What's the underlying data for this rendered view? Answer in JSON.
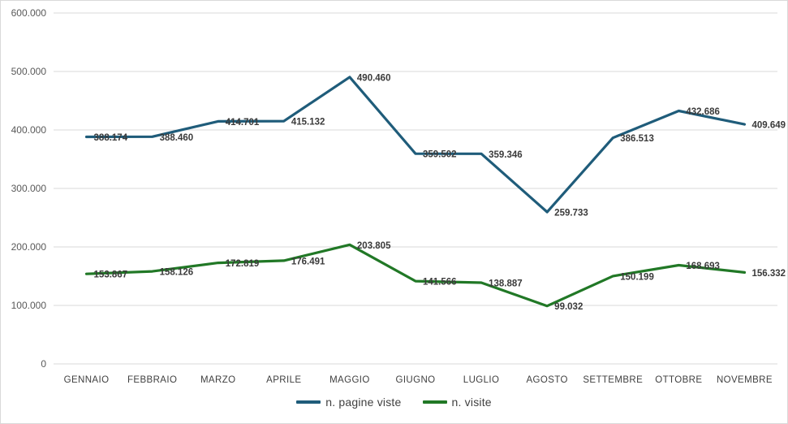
{
  "chart": {
    "background": "#ffffff",
    "border_color": "#d9d9d9",
    "gridline_color": "#d9d9d9"
  },
  "chart_data": {
    "type": "line",
    "categories": [
      "GENNAIO",
      "FEBBRAIO",
      "MARZO",
      "APRILE",
      "MAGGIO",
      "GIUGNO",
      "LUGLIO",
      "AGOSTO",
      "SETTEMBRE",
      "OTTOBRE",
      "NOVEMBRE"
    ],
    "series": [
      {
        "name": "n. pagine viste",
        "color": "#1f5c7a",
        "values": [
          388174,
          388460,
          414701,
          415132,
          490460,
          359502,
          359346,
          259733,
          386513,
          432686,
          409649
        ],
        "labels": [
          "388.174",
          "388.460",
          "414.701",
          "415.132",
          "490.460",
          "359.502",
          "359.346",
          "259.733",
          "386.513",
          "432.686",
          "409.649"
        ]
      },
      {
        "name": "n. visite",
        "color": "#217826",
        "values": [
          153867,
          158126,
          172819,
          176491,
          203805,
          141566,
          138887,
          99032,
          150199,
          168693,
          156332
        ],
        "labels": [
          "153.867",
          "158.126",
          "172.819",
          "176.491",
          "203.805",
          "141.566",
          "138.887",
          "99.032",
          "150.199",
          "168.693",
          "156.332"
        ]
      }
    ],
    "title": "",
    "xlabel": "",
    "ylabel": "",
    "ylim": [
      0,
      600000
    ],
    "y_tick_step": 100000,
    "y_tick_labels": [
      "0",
      "100.000",
      "200.000",
      "300.000",
      "400.000",
      "500.000",
      "600.000"
    ],
    "grid": "horizontal",
    "legend_position": "bottom",
    "data_label_position": "right"
  }
}
